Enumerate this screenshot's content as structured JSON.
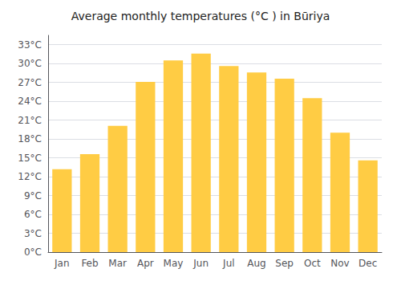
{
  "chart_data": {
    "type": "bar",
    "title": "Average monthly temperatures (°C ) in Būriya",
    "categories": [
      "Jan",
      "Feb",
      "Mar",
      "Apr",
      "May",
      "Jun",
      "Jul",
      "Aug",
      "Sep",
      "Oct",
      "Nov",
      "Dec"
    ],
    "values": [
      13.2,
      15.6,
      20.1,
      27.1,
      30.5,
      31.6,
      29.6,
      28.6,
      27.6,
      24.5,
      19.0,
      14.6
    ],
    "color": "#FFCC44",
    "ylim": [
      0,
      34.5
    ],
    "yticks": [
      {
        "value": 0,
        "label": "0°C"
      },
      {
        "value": 3,
        "label": "3°C"
      },
      {
        "value": 6,
        "label": "6°C"
      },
      {
        "value": 9,
        "label": "9°C"
      },
      {
        "value": 12,
        "label": "12°C"
      },
      {
        "value": 15,
        "label": "15°C"
      },
      {
        "value": 18,
        "label": "18°C"
      },
      {
        "value": 21,
        "label": "21°C"
      },
      {
        "value": 24,
        "label": "24°C"
      },
      {
        "value": 27,
        "label": "27°C"
      },
      {
        "value": 30,
        "label": "30°C"
      },
      {
        "value": 33,
        "label": "33°C"
      }
    ],
    "grid": true
  }
}
